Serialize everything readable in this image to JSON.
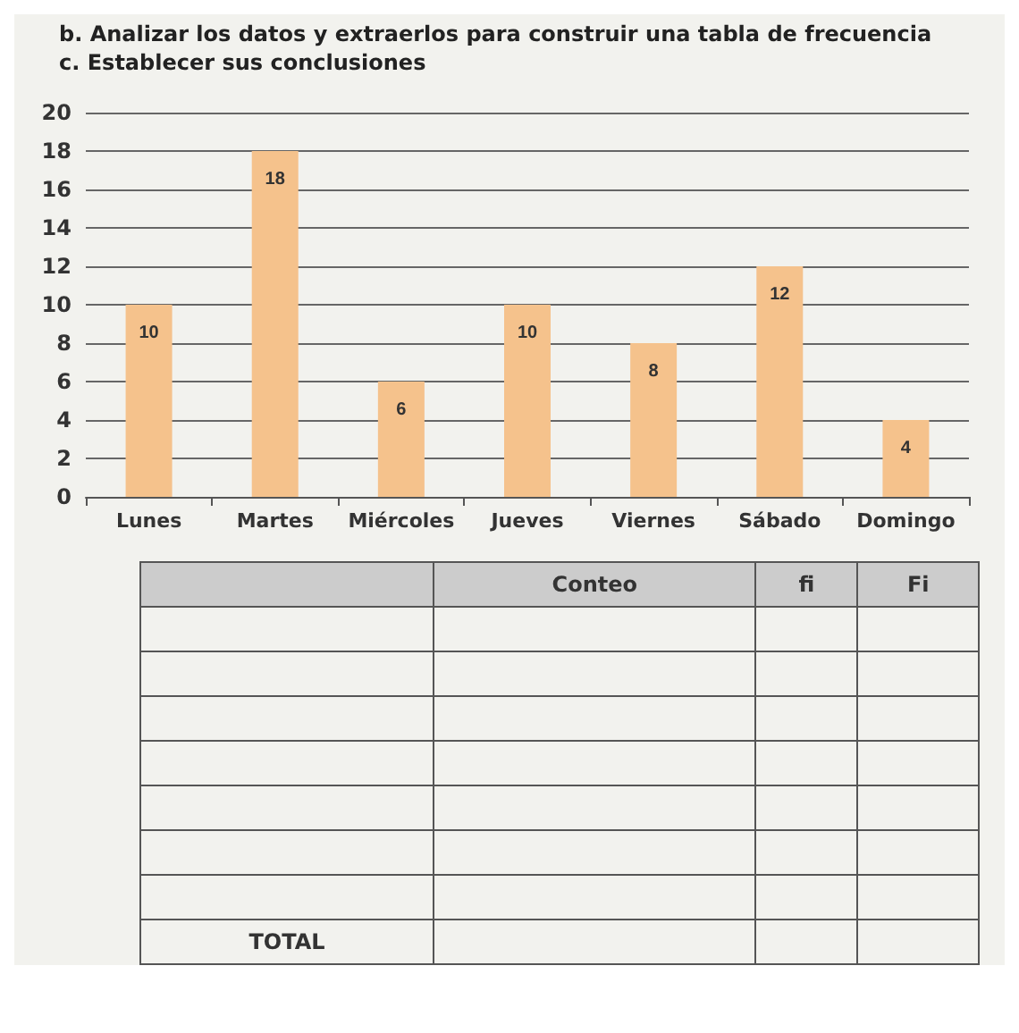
{
  "chart_data": {
    "type": "bar",
    "title": "b. Analizar los datos y extraerlos para construir una tabla de frecuencia",
    "subtitle": "c. Establecer sus conclusiones",
    "categories": [
      "Lunes",
      "Martes",
      "Miércoles",
      "Jueves",
      "Viernes",
      "Sábado",
      "Domingo"
    ],
    "values": [
      10,
      18,
      6,
      10,
      8,
      12,
      4
    ],
    "color": "#f5c28c",
    "ylim": [
      0,
      20
    ],
    "yticks": [
      0,
      2,
      4,
      6,
      8,
      10,
      12,
      14,
      16,
      18,
      20
    ],
    "grid": "y",
    "data_labels": true,
    "annotations": [
      "Conteo",
      "fi",
      "Fi",
      "TOTAL"
    ]
  }
}
